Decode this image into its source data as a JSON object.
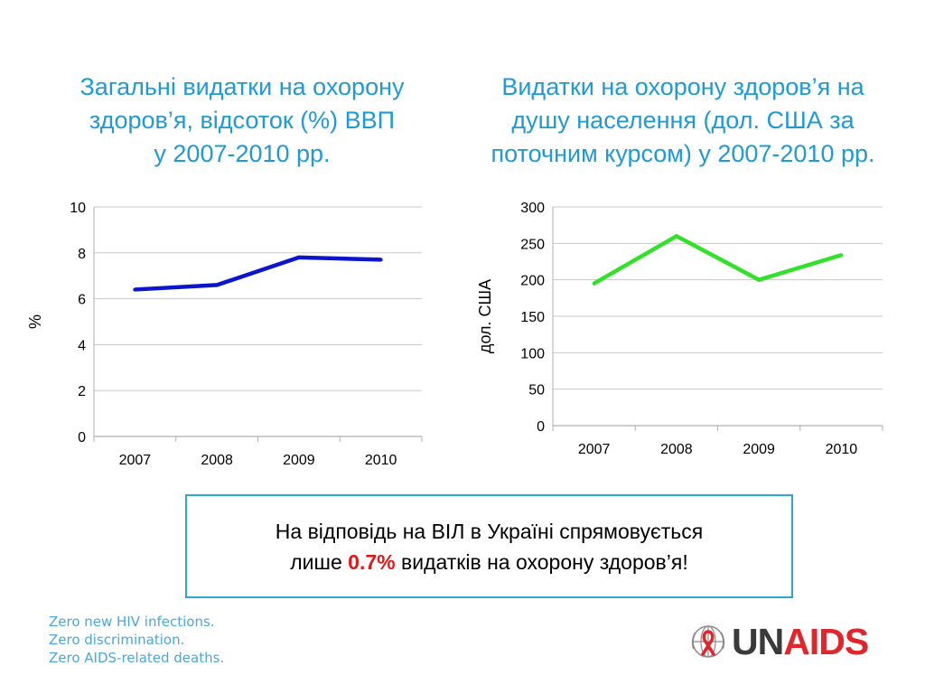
{
  "colors": {
    "title": "#1f9ad2",
    "series_left": "#0b16cc",
    "series_right": "#33e02a",
    "note_border": "#2aa8d2",
    "highlight": "#e01818",
    "logo_red": "#e0262b",
    "logo_gray": "#3a3a3a",
    "slogan": "#4ba8d6"
  },
  "chart_data": [
    {
      "type": "line",
      "title_lines": [
        "Загальні видатки на охорону",
        "здоров’я, відсоток (%) ВВП",
        "у 2007-2010 рр."
      ],
      "categories": [
        "2007",
        "2008",
        "2009",
        "2010"
      ],
      "series": [
        {
          "values": [
            6.4,
            6.6,
            7.8,
            7.7
          ]
        }
      ],
      "ylabel": "%",
      "xlabel": "",
      "ylim": [
        0,
        10
      ],
      "yticks": [
        0,
        2,
        4,
        6,
        8,
        10
      ],
      "grid": true,
      "legend": "none"
    },
    {
      "type": "line",
      "title_lines": [
        "Видатки на охорону здоров’я на",
        "душу населення (дол. США за",
        "поточним курсом) у 2007-2010 рр."
      ],
      "categories": [
        "2007",
        "2008",
        "2009",
        "2010"
      ],
      "series": [
        {
          "values": [
            195,
            260,
            200,
            234
          ]
        }
      ],
      "ylabel": "дол. США",
      "xlabel": "",
      "ylim": [
        0,
        300
      ],
      "yticks": [
        0,
        50,
        100,
        150,
        200,
        250,
        300
      ],
      "grid": true,
      "legend": "none"
    }
  ],
  "note": {
    "line1": "На відповідь на ВІЛ в Україні спрямовується",
    "line2_before": "лише ",
    "highlight": "0.7%",
    "line2_after": " видатків на охорону здоров’я!"
  },
  "slogans": [
    "Zero new HIV infections.",
    "Zero discrimination.",
    "Zero AIDS-related deaths."
  ],
  "logo": {
    "text_un": "UN",
    "text_aids": "AIDS",
    "icon": "unaids-ribbon-globe-icon"
  }
}
